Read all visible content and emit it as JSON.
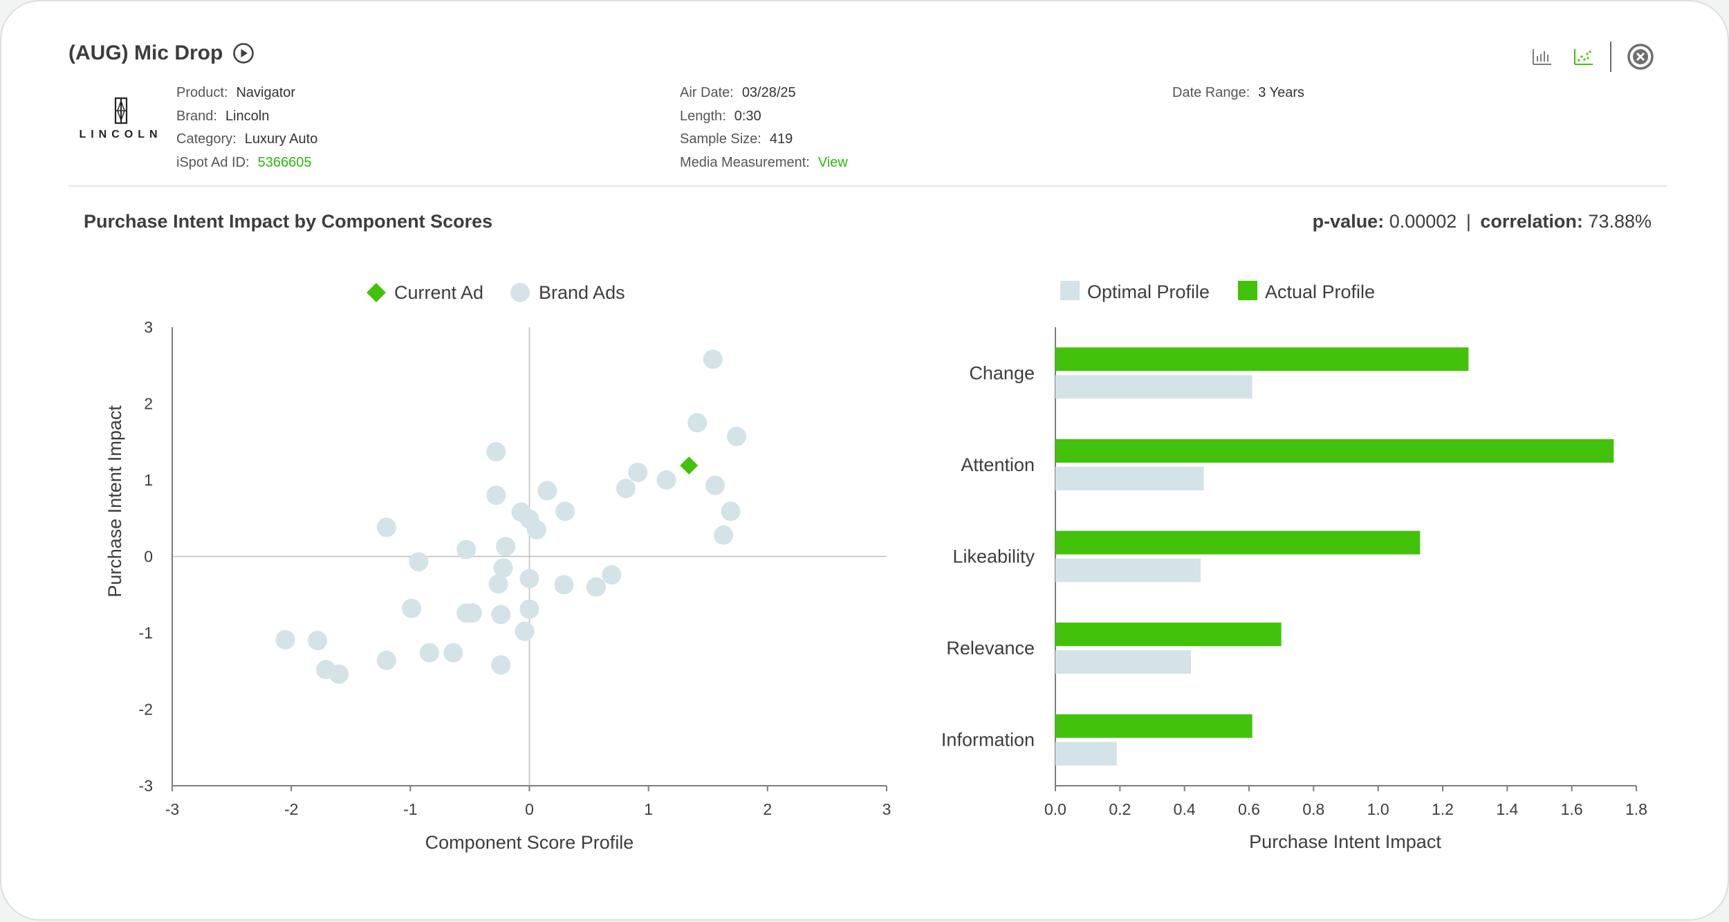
{
  "header": {
    "title": "(AUG) Mic Drop",
    "logo_text": "LINCOLN",
    "col1": [
      {
        "label": "Product:",
        "value": "Navigator"
      },
      {
        "label": "Brand:",
        "value": "Lincoln"
      },
      {
        "label": "Category:",
        "value": "Luxury Auto"
      },
      {
        "label": "iSpot Ad ID:",
        "value": "5366605"
      }
    ],
    "col2": [
      {
        "label": "Air Date:",
        "value": "03/28/25"
      },
      {
        "label": "Length:",
        "value": "0:30"
      },
      {
        "label": "Sample Size:",
        "value": "419"
      },
      {
        "label": "Media Measurement:",
        "value": "View"
      }
    ],
    "col3": [
      {
        "label": "Date Range:",
        "value": "3 Years"
      }
    ]
  },
  "toolbar": {
    "icons": [
      "bar-chart-icon",
      "scatter-chart-icon",
      "close-icon"
    ],
    "active": "scatter-chart-icon"
  },
  "section": {
    "title": "Purchase Intent Impact by Component Scores",
    "pvalue_label": "p-value:",
    "pvalue": "0.00002",
    "separator": "|",
    "correlation_label": "correlation:",
    "correlation": "73.88%"
  },
  "colors": {
    "green": "#42c20a",
    "light": "#d3e3e7",
    "axis": "#7d7d7d",
    "text": "#3d3d3d",
    "link": "#2fb50f"
  },
  "chart_data": [
    {
      "type": "scatter",
      "title": "",
      "xlabel": "Component Score Profile",
      "ylabel": "Purchase Intent Impact",
      "xlim": [
        -3,
        3
      ],
      "ylim": [
        -3,
        3
      ],
      "xticks": [
        "-3",
        "-2",
        "-1",
        "0",
        "1",
        "2",
        "3"
      ],
      "yticks": [
        "3",
        "2",
        "1",
        "0",
        "-1",
        "-2",
        "-3"
      ],
      "legend_position": "top-center",
      "series": [
        {
          "name": "Current Ad",
          "marker": "diamond",
          "points": [
            [
              1.34,
              1.19
            ]
          ]
        },
        {
          "name": "Brand Ads",
          "marker": "circle",
          "points": [
            [
              1.54,
              2.58
            ],
            [
              1.41,
              1.75
            ],
            [
              1.74,
              1.57
            ],
            [
              -0.28,
              1.37
            ],
            [
              0.91,
              1.1
            ],
            [
              1.15,
              1.0
            ],
            [
              0.81,
              0.89
            ],
            [
              1.56,
              0.93
            ],
            [
              -0.28,
              0.8
            ],
            [
              0.15,
              0.86
            ],
            [
              -1.2,
              0.38
            ],
            [
              -0.07,
              0.58
            ],
            [
              0.0,
              0.49
            ],
            [
              0.06,
              0.35
            ],
            [
              0.3,
              0.59
            ],
            [
              1.69,
              0.59
            ],
            [
              1.63,
              0.28
            ],
            [
              -0.53,
              0.09
            ],
            [
              -0.2,
              0.13
            ],
            [
              -0.93,
              -0.07
            ],
            [
              -0.22,
              -0.15
            ],
            [
              -0.26,
              -0.36
            ],
            [
              0.0,
              -0.29
            ],
            [
              0.29,
              -0.37
            ],
            [
              0.56,
              -0.4
            ],
            [
              0.69,
              -0.24
            ],
            [
              -0.99,
              -0.68
            ],
            [
              -0.53,
              -0.74
            ],
            [
              -0.48,
              -0.74
            ],
            [
              -0.24,
              -0.76
            ],
            [
              0.0,
              -0.69
            ],
            [
              -0.04,
              -0.98
            ],
            [
              -2.05,
              -1.09
            ],
            [
              -1.78,
              -1.1
            ],
            [
              -1.71,
              -1.48
            ],
            [
              -1.6,
              -1.54
            ],
            [
              -1.2,
              -1.36
            ],
            [
              -0.84,
              -1.26
            ],
            [
              -0.64,
              -1.26
            ],
            [
              -0.24,
              -1.42
            ]
          ]
        }
      ]
    },
    {
      "type": "bar",
      "orientation": "horizontal",
      "title": "",
      "xlabel": "Purchase Intent Impact",
      "ylabel": "",
      "xlim": [
        0,
        1.8
      ],
      "xticks": [
        "0.0",
        "0.2",
        "0.4",
        "0.6",
        "0.8",
        "1.0",
        "1.2",
        "1.4",
        "1.6",
        "1.8"
      ],
      "categories": [
        "Change",
        "Attention",
        "Likeability",
        "Relevance",
        "Information"
      ],
      "legend_position": "top-center",
      "series": [
        {
          "name": "Actual Profile",
          "values": [
            1.28,
            1.73,
            1.13,
            0.7,
            0.61
          ]
        },
        {
          "name": "Optimal Profile",
          "values": [
            0.61,
            0.46,
            0.45,
            0.42,
            0.19
          ]
        }
      ]
    }
  ]
}
